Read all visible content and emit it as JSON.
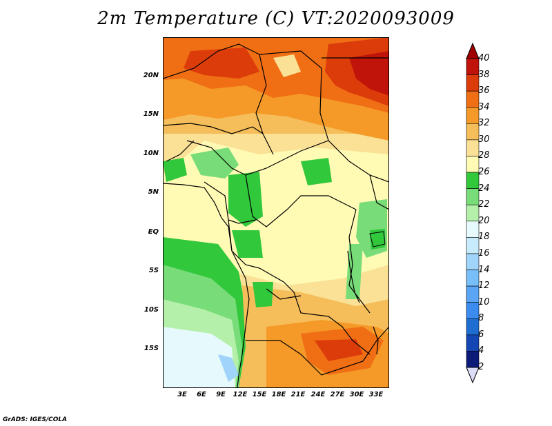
{
  "title": "2m Temperature (C) VT:2020093009",
  "credit": "GrADS: IGES/COLA",
  "map": {
    "lat_labels": [
      "20N",
      "15N",
      "10N",
      "5N",
      "EQ",
      "5S",
      "10S",
      "15S"
    ],
    "lon_labels": [
      "3E",
      "6E",
      "9E",
      "12E",
      "15E",
      "18E",
      "21E",
      "24E",
      "27E",
      "30E",
      "33E"
    ],
    "lon_range": [
      0,
      35
    ],
    "lat_range": [
      -19,
      25
    ],
    "variable": "2m Temperature",
    "units": "C"
  },
  "colorbar": {
    "levels": [
      "2",
      "4",
      "6",
      "8",
      "10",
      "12",
      "14",
      "16",
      "18",
      "20",
      "22",
      "24",
      "26",
      "28",
      "30",
      "32",
      "34",
      "36",
      "38",
      "40"
    ],
    "colors": [
      "#dcdcf6",
      "#0c1a78",
      "#1446b4",
      "#1e6ed2",
      "#3c8cf0",
      "#5aa5f5",
      "#78bef8",
      "#a0d4fa",
      "#c8ebfc",
      "#e6fafd",
      "#b4f0aa",
      "#78dc78",
      "#32c83c",
      "#fffab4",
      "#fae196",
      "#f5be5a",
      "#f59a28",
      "#f06e14",
      "#dc3c0a",
      "#c0140a",
      "#a00000"
    ]
  }
}
